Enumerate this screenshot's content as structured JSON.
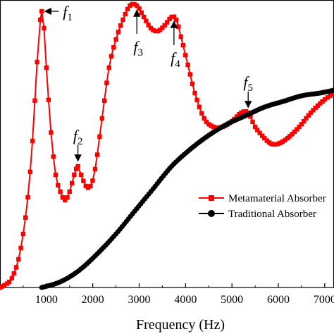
{
  "chart_data": {
    "type": "line",
    "xlabel": "Frequency (Hz)",
    "ylabel": "",
    "xlim": [
      0,
      7200
    ],
    "ylim": [
      0,
      1.0
    ],
    "x_ticks": [
      1000,
      2000,
      3000,
      4000,
      5000,
      6000,
      7000
    ],
    "x_tick_labels": [
      "1000",
      "2000",
      "3000",
      "4000",
      "5000",
      "6000",
      "7000"
    ],
    "grid": false,
    "legend_position": "right",
    "series": [
      {
        "name": "Metamaterial Absorber",
        "color": "#ff0000",
        "marker": "square",
        "points": [
          [
            0,
            0.0
          ],
          [
            200,
            0.02
          ],
          [
            300,
            0.05
          ],
          [
            400,
            0.1
          ],
          [
            500,
            0.19
          ],
          [
            600,
            0.32
          ],
          [
            700,
            0.52
          ],
          [
            800,
            0.8
          ],
          [
            870,
            0.95
          ],
          [
            900,
            0.98
          ],
          [
            950,
            0.92
          ],
          [
            1000,
            0.78
          ],
          [
            1100,
            0.55
          ],
          [
            1200,
            0.4
          ],
          [
            1300,
            0.34
          ],
          [
            1400,
            0.31
          ],
          [
            1500,
            0.34
          ],
          [
            1600,
            0.4
          ],
          [
            1680,
            0.43
          ],
          [
            1750,
            0.4
          ],
          [
            1850,
            0.36
          ],
          [
            1950,
            0.36
          ],
          [
            2050,
            0.42
          ],
          [
            2200,
            0.6
          ],
          [
            2350,
            0.78
          ],
          [
            2500,
            0.88
          ],
          [
            2650,
            0.95
          ],
          [
            2800,
            1.0
          ],
          [
            2950,
            1.0
          ],
          [
            3100,
            0.96
          ],
          [
            3250,
            0.92
          ],
          [
            3400,
            0.91
          ],
          [
            3550,
            0.93
          ],
          [
            3700,
            0.96
          ],
          [
            3800,
            0.95
          ],
          [
            3900,
            0.89
          ],
          [
            4050,
            0.79
          ],
          [
            4200,
            0.69
          ],
          [
            4400,
            0.6
          ],
          [
            4600,
            0.57
          ],
          [
            4800,
            0.57
          ],
          [
            5000,
            0.59
          ],
          [
            5200,
            0.62
          ],
          [
            5350,
            0.62
          ],
          [
            5500,
            0.57
          ],
          [
            5700,
            0.53
          ],
          [
            5850,
            0.51
          ],
          [
            6000,
            0.51
          ],
          [
            6200,
            0.53
          ],
          [
            6450,
            0.57
          ],
          [
            6700,
            0.62
          ],
          [
            6950,
            0.66
          ],
          [
            7200,
            0.69
          ]
        ]
      },
      {
        "name": "Traditional Absorber",
        "color": "#000000",
        "marker": "circle",
        "points": [
          [
            900,
            0.0
          ],
          [
            1300,
            0.02
          ],
          [
            1700,
            0.06
          ],
          [
            2100,
            0.12
          ],
          [
            2500,
            0.19
          ],
          [
            2900,
            0.27
          ],
          [
            3300,
            0.35
          ],
          [
            3700,
            0.43
          ],
          [
            4100,
            0.49
          ],
          [
            4500,
            0.54
          ],
          [
            4900,
            0.58
          ],
          [
            5300,
            0.61
          ],
          [
            5700,
            0.64
          ],
          [
            6100,
            0.66
          ],
          [
            6500,
            0.68
          ],
          [
            6900,
            0.69
          ],
          [
            7200,
            0.7
          ]
        ]
      }
    ],
    "annotations": [
      {
        "symbol": "f",
        "sub": "1",
        "x": 900,
        "y": 0.98,
        "arrow": "left"
      },
      {
        "symbol": "f",
        "sub": "2",
        "x": 1680,
        "y": 0.43,
        "arrow": "down"
      },
      {
        "symbol": "f",
        "sub": "3",
        "x": 2950,
        "y": 1.0,
        "arrow": "up"
      },
      {
        "symbol": "f",
        "sub": "4",
        "x": 3750,
        "y": 0.96,
        "arrow": "up"
      },
      {
        "symbol": "f",
        "sub": "5",
        "x": 5350,
        "y": 0.62,
        "arrow": "down"
      }
    ]
  }
}
